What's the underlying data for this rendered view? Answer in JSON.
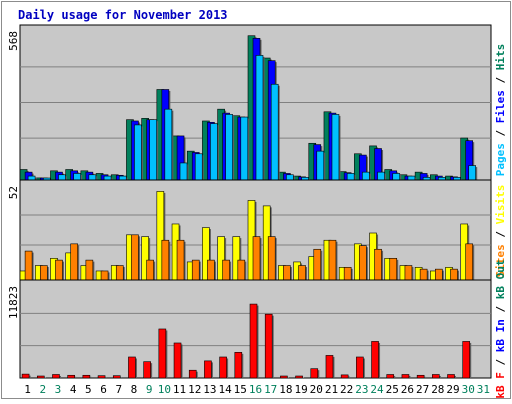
{
  "title": "Daily usage for November 2013",
  "colors": {
    "background": "#FFFFFF",
    "panel": "#C8C8C8",
    "border": "#000000",
    "frame": "#8C8C8C",
    "title": "#0000C0",
    "hits": "#00805C",
    "files": "#0000FF",
    "pages": "#00C0FF",
    "visits": "#FFFF00",
    "sites": "#FF8000",
    "kbin": "#FF0000",
    "day_normal": "#000000",
    "day_weekend": "#00805C"
  },
  "right_labels": {
    "top": {
      "pages": "Pages",
      "files": "Files",
      "hits": "Hits",
      "sep": " / "
    },
    "middle": {
      "sites": "Sites",
      "visits": "Visits",
      "sep": " / "
    },
    "bottom": {
      "kbf": "kB F",
      "kbin": "kB In",
      "kbout": "kB Out",
      "sep": " / "
    }
  },
  "chart_data": {
    "type": "bar",
    "categories": [
      "1",
      "2",
      "3",
      "4",
      "5",
      "6",
      "7",
      "8",
      "9",
      "10",
      "11",
      "12",
      "13",
      "14",
      "15",
      "16",
      "17",
      "18",
      "19",
      "20",
      "21",
      "22",
      "23",
      "24",
      "25",
      "26",
      "27",
      "28",
      "29",
      "30",
      "31"
    ],
    "weekend_days": [
      "2",
      "3",
      "9",
      "10",
      "16",
      "17",
      "23",
      "24",
      "30",
      "31"
    ],
    "panels": [
      {
        "name": "hits-files-pages",
        "ymax_label": "568",
        "ymax": 568,
        "series": [
          {
            "name": "Hits",
            "color": "#00805C",
            "values": [
              40,
              8,
              35,
              40,
              35,
              25,
              20,
              230,
              235,
              345,
              168,
              110,
              225,
              270,
              245,
              550,
              465,
              30,
              15,
              140,
              260,
              32,
              100,
              130,
              40,
              20,
              30,
              20,
              15,
              160,
              0
            ]
          },
          {
            "name": "Files",
            "color": "#0000FF",
            "values": [
              30,
              5,
              30,
              35,
              30,
              20,
              18,
              225,
              230,
              345,
              168,
              105,
              220,
              255,
              240,
              540,
              455,
              25,
              12,
              135,
              255,
              28,
              95,
              120,
              35,
              15,
              25,
              15,
              12,
              150,
              0
            ]
          },
          {
            "name": "Pages",
            "color": "#00C0FF",
            "values": [
              15,
              3,
              20,
              25,
              20,
              15,
              15,
              210,
              230,
              270,
              65,
              100,
              215,
              250,
              240,
              475,
              365,
              20,
              10,
              110,
              250,
              25,
              30,
              30,
              25,
              15,
              10,
              10,
              10,
              55,
              0
            ]
          }
        ]
      },
      {
        "name": "visits-sites",
        "ymax_label": "52",
        "ymax": 52,
        "series": [
          {
            "name": "Visits",
            "color": "#FFFF00",
            "values": [
              5,
              8,
              12,
              15,
              8,
              5,
              8,
              25,
              24,
              49,
              31,
              10,
              29,
              24,
              24,
              44,
              41,
              8,
              10,
              13,
              22,
              7,
              20,
              26,
              12,
              8,
              7,
              5,
              7,
              31,
              0
            ]
          },
          {
            "name": "Sites",
            "color": "#FF8000",
            "values": [
              16,
              8,
              11,
              20,
              11,
              5,
              8,
              25,
              11,
              22,
              22,
              11,
              11,
              11,
              11,
              24,
              24,
              8,
              8,
              17,
              22,
              7,
              19,
              17,
              12,
              8,
              6,
              6,
              6,
              20,
              0
            ]
          }
        ]
      },
      {
        "name": "kb",
        "ymax_label": "11823",
        "ymax": 11823,
        "series": [
          {
            "name": "kB F",
            "color": "#FF0000",
            "values": [
              500,
              150,
              450,
              350,
              350,
              300,
              300,
              2700,
              2100,
              6300,
              4500,
              1000,
              2200,
              2700,
              3300,
              9500,
              8200,
              200,
              150,
              1200,
              2900,
              400,
              2700,
              4700,
              450,
              450,
              350,
              450,
              450,
              4700,
              0
            ]
          }
        ]
      }
    ]
  }
}
